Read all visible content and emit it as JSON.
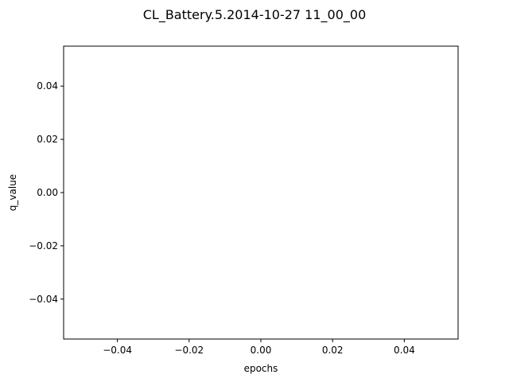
{
  "chart_data": {
    "type": "line",
    "title": "CL_Battery.5.2014-10-27 11_00_00",
    "xlabel": "epochs",
    "ylabel": "q_value",
    "xlim": [
      -0.055,
      0.055
    ],
    "ylim": [
      -0.055,
      0.055
    ],
    "x_ticks": [
      "−0.04",
      "−0.02",
      "0.00",
      "0.02",
      "0.04"
    ],
    "x_tick_values": [
      -0.04,
      -0.02,
      0.0,
      0.02,
      0.04
    ],
    "y_ticks": [
      "−0.04",
      "−0.02",
      "0.00",
      "0.02",
      "0.04"
    ],
    "y_tick_values": [
      -0.04,
      -0.02,
      0.0,
      0.02,
      0.04
    ],
    "series": [],
    "grid": false,
    "legend": "none"
  }
}
